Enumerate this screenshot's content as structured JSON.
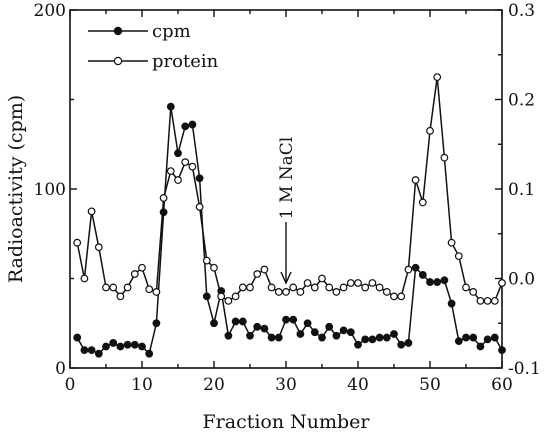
{
  "chart_data": {
    "type": "line",
    "xlabel": "Fraction Number",
    "ylabel": "Radioactivity (cpm)",
    "xlim": [
      0,
      60
    ],
    "ylim": [
      0,
      200
    ],
    "y2lim": [
      -0.1,
      0.3
    ],
    "xticks": [
      "0",
      "10",
      "20",
      "30",
      "40",
      "50",
      "60"
    ],
    "yticks": [
      "0",
      "100",
      "200"
    ],
    "y2ticks": [
      "-0.1",
      "0.0",
      "0.1",
      "0.2",
      "0.3"
    ],
    "legend_position": "top-left",
    "annotation": {
      "text": "1 M NaCl",
      "x": 30
    },
    "series": [
      {
        "name": "cpm",
        "marker": "filled-circle",
        "axis": "left",
        "x": [
          1,
          2,
          3,
          4,
          5,
          6,
          7,
          8,
          9,
          10,
          11,
          12,
          13,
          14,
          15,
          16,
          17,
          18,
          19,
          20,
          21,
          22,
          23,
          24,
          25,
          26,
          27,
          28,
          29,
          30,
          31,
          32,
          33,
          34,
          35,
          36,
          37,
          38,
          39,
          40,
          41,
          42,
          43,
          44,
          45,
          46,
          47,
          48,
          49,
          50,
          51,
          52,
          53,
          54,
          55,
          56,
          57,
          58,
          59,
          60
        ],
        "values": [
          17,
          10,
          10,
          8,
          12,
          14,
          12,
          13,
          13,
          12,
          8,
          25,
          87,
          146,
          120,
          135,
          136,
          106,
          40,
          25,
          43,
          18,
          26,
          26,
          18,
          23,
          22,
          17,
          17,
          27,
          27,
          19,
          25,
          20,
          17,
          23,
          18,
          21,
          20,
          13,
          16,
          16,
          17,
          17,
          19,
          13,
          14,
          56,
          52,
          48,
          48,
          49,
          36,
          15,
          17,
          17,
          12,
          16,
          17,
          10
        ]
      },
      {
        "name": "protein",
        "marker": "open-circle",
        "axis": "right",
        "x": [
          1,
          2,
          3,
          4,
          5,
          6,
          7,
          8,
          9,
          10,
          11,
          12,
          13,
          14,
          15,
          16,
          17,
          18,
          19,
          20,
          21,
          22,
          23,
          24,
          25,
          26,
          27,
          28,
          29,
          30,
          31,
          32,
          33,
          34,
          35,
          36,
          37,
          38,
          39,
          40,
          41,
          42,
          43,
          44,
          45,
          46,
          47,
          48,
          49,
          50,
          51,
          52,
          53,
          54,
          55,
          56,
          57,
          58,
          59,
          60
        ],
        "values": [
          0.04,
          0.0,
          0.075,
          0.035,
          -0.01,
          -0.01,
          -0.02,
          -0.01,
          0.005,
          0.012,
          -0.012,
          -0.015,
          0.09,
          0.12,
          0.11,
          0.13,
          0.125,
          0.08,
          0.02,
          0.012,
          -0.02,
          -0.025,
          -0.02,
          -0.01,
          -0.01,
          0.005,
          0.01,
          -0.01,
          -0.015,
          -0.015,
          -0.01,
          -0.015,
          -0.005,
          -0.01,
          0.0,
          -0.01,
          -0.015,
          -0.01,
          -0.005,
          -0.005,
          -0.01,
          -0.005,
          -0.01,
          -0.015,
          -0.02,
          -0.02,
          0.01,
          0.11,
          0.085,
          0.165,
          0.225,
          0.135,
          0.04,
          0.025,
          -0.01,
          -0.015,
          -0.025,
          -0.025,
          -0.025,
          -0.005
        ]
      }
    ]
  }
}
